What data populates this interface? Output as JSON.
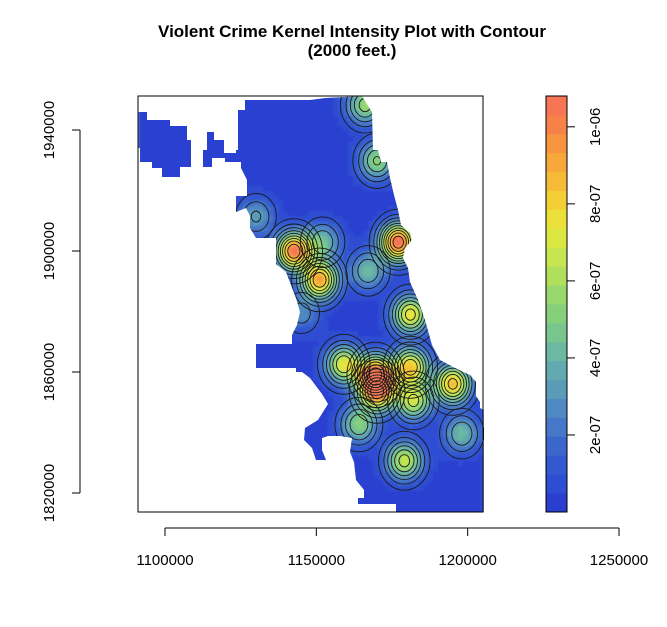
{
  "chart_data": {
    "type": "heatmap",
    "title": "Violent Crime Kernel Intensity Plot with Contour",
    "subtitle": "(2000 feet.)",
    "xlabel": "",
    "ylabel": "",
    "x_ticks": [
      1100000,
      1150000,
      1200000,
      1250000
    ],
    "x_tick_labels": [
      "1100000",
      "1150000",
      "1200000",
      "1250000"
    ],
    "y_ticks": [
      1820000,
      1860000,
      1900000,
      1940000
    ],
    "y_tick_labels": [
      "1820000",
      "1860000",
      "1900000",
      "1940000"
    ],
    "xlim": [
      1091000,
      1205000
    ],
    "ylim": [
      1814000,
      1952000
    ],
    "colorbar": {
      "range": [
        0,
        1.08e-06
      ],
      "ticks": [
        2e-07,
        4e-07,
        6e-07,
        8e-07,
        1e-06
      ],
      "tick_labels": [
        "2e-07",
        "4e-07",
        "6e-07",
        "8e-07",
        "1e-06"
      ],
      "colors": [
        "#2a3fd0",
        "#2d4dd2",
        "#3358cf",
        "#3b66cc",
        "#4677c8",
        "#4f89c2",
        "#5a9bb8",
        "#62aab0",
        "#6cb8a0",
        "#78c68e",
        "#86d07c",
        "#99d86c",
        "#b0df5c",
        "#c6e54e",
        "#dbe842",
        "#ece13a",
        "#f2cf36",
        "#f5bb36",
        "#f7a83a",
        "#f79440",
        "#f68249",
        "#f57554"
      ]
    },
    "hotspots": [
      {
        "x": 1142500,
        "y": 1900500,
        "intensity": 1e-06
      },
      {
        "x": 1151000,
        "y": 1891000,
        "intensity": 9e-07
      },
      {
        "x": 1177000,
        "y": 1903500,
        "intensity": 1.08e-06
      },
      {
        "x": 1181000,
        "y": 1879500,
        "intensity": 7.5e-07
      },
      {
        "x": 1170000,
        "y": 1930500,
        "intensity": 5.2e-07
      },
      {
        "x": 1152000,
        "y": 1903500,
        "intensity": 4e-07
      },
      {
        "x": 1169500,
        "y": 1859500,
        "intensity": 1e-06
      },
      {
        "x": 1159000,
        "y": 1863000,
        "intensity": 7e-07
      },
      {
        "x": 1170000,
        "y": 1854000,
        "intensity": 9e-07
      },
      {
        "x": 1181000,
        "y": 1862000,
        "intensity": 8e-07
      },
      {
        "x": 1195000,
        "y": 1856500,
        "intensity": 8.5e-07
      },
      {
        "x": 1182000,
        "y": 1851000,
        "intensity": 6.5e-07
      },
      {
        "x": 1164000,
        "y": 1843000,
        "intensity": 5e-07
      },
      {
        "x": 1179000,
        "y": 1831000,
        "intensity": 6.5e-07
      },
      {
        "x": 1166000,
        "y": 1949000,
        "intensity": 5.5e-07
      },
      {
        "x": 1130000,
        "y": 1912000,
        "intensity": 3.2e-07
      },
      {
        "x": 1167000,
        "y": 1894000,
        "intensity": 4e-07
      },
      {
        "x": 1145000,
        "y": 1880000,
        "intensity": 2.5e-07
      },
      {
        "x": 1198000,
        "y": 1840000,
        "intensity": 4e-07
      }
    ]
  }
}
